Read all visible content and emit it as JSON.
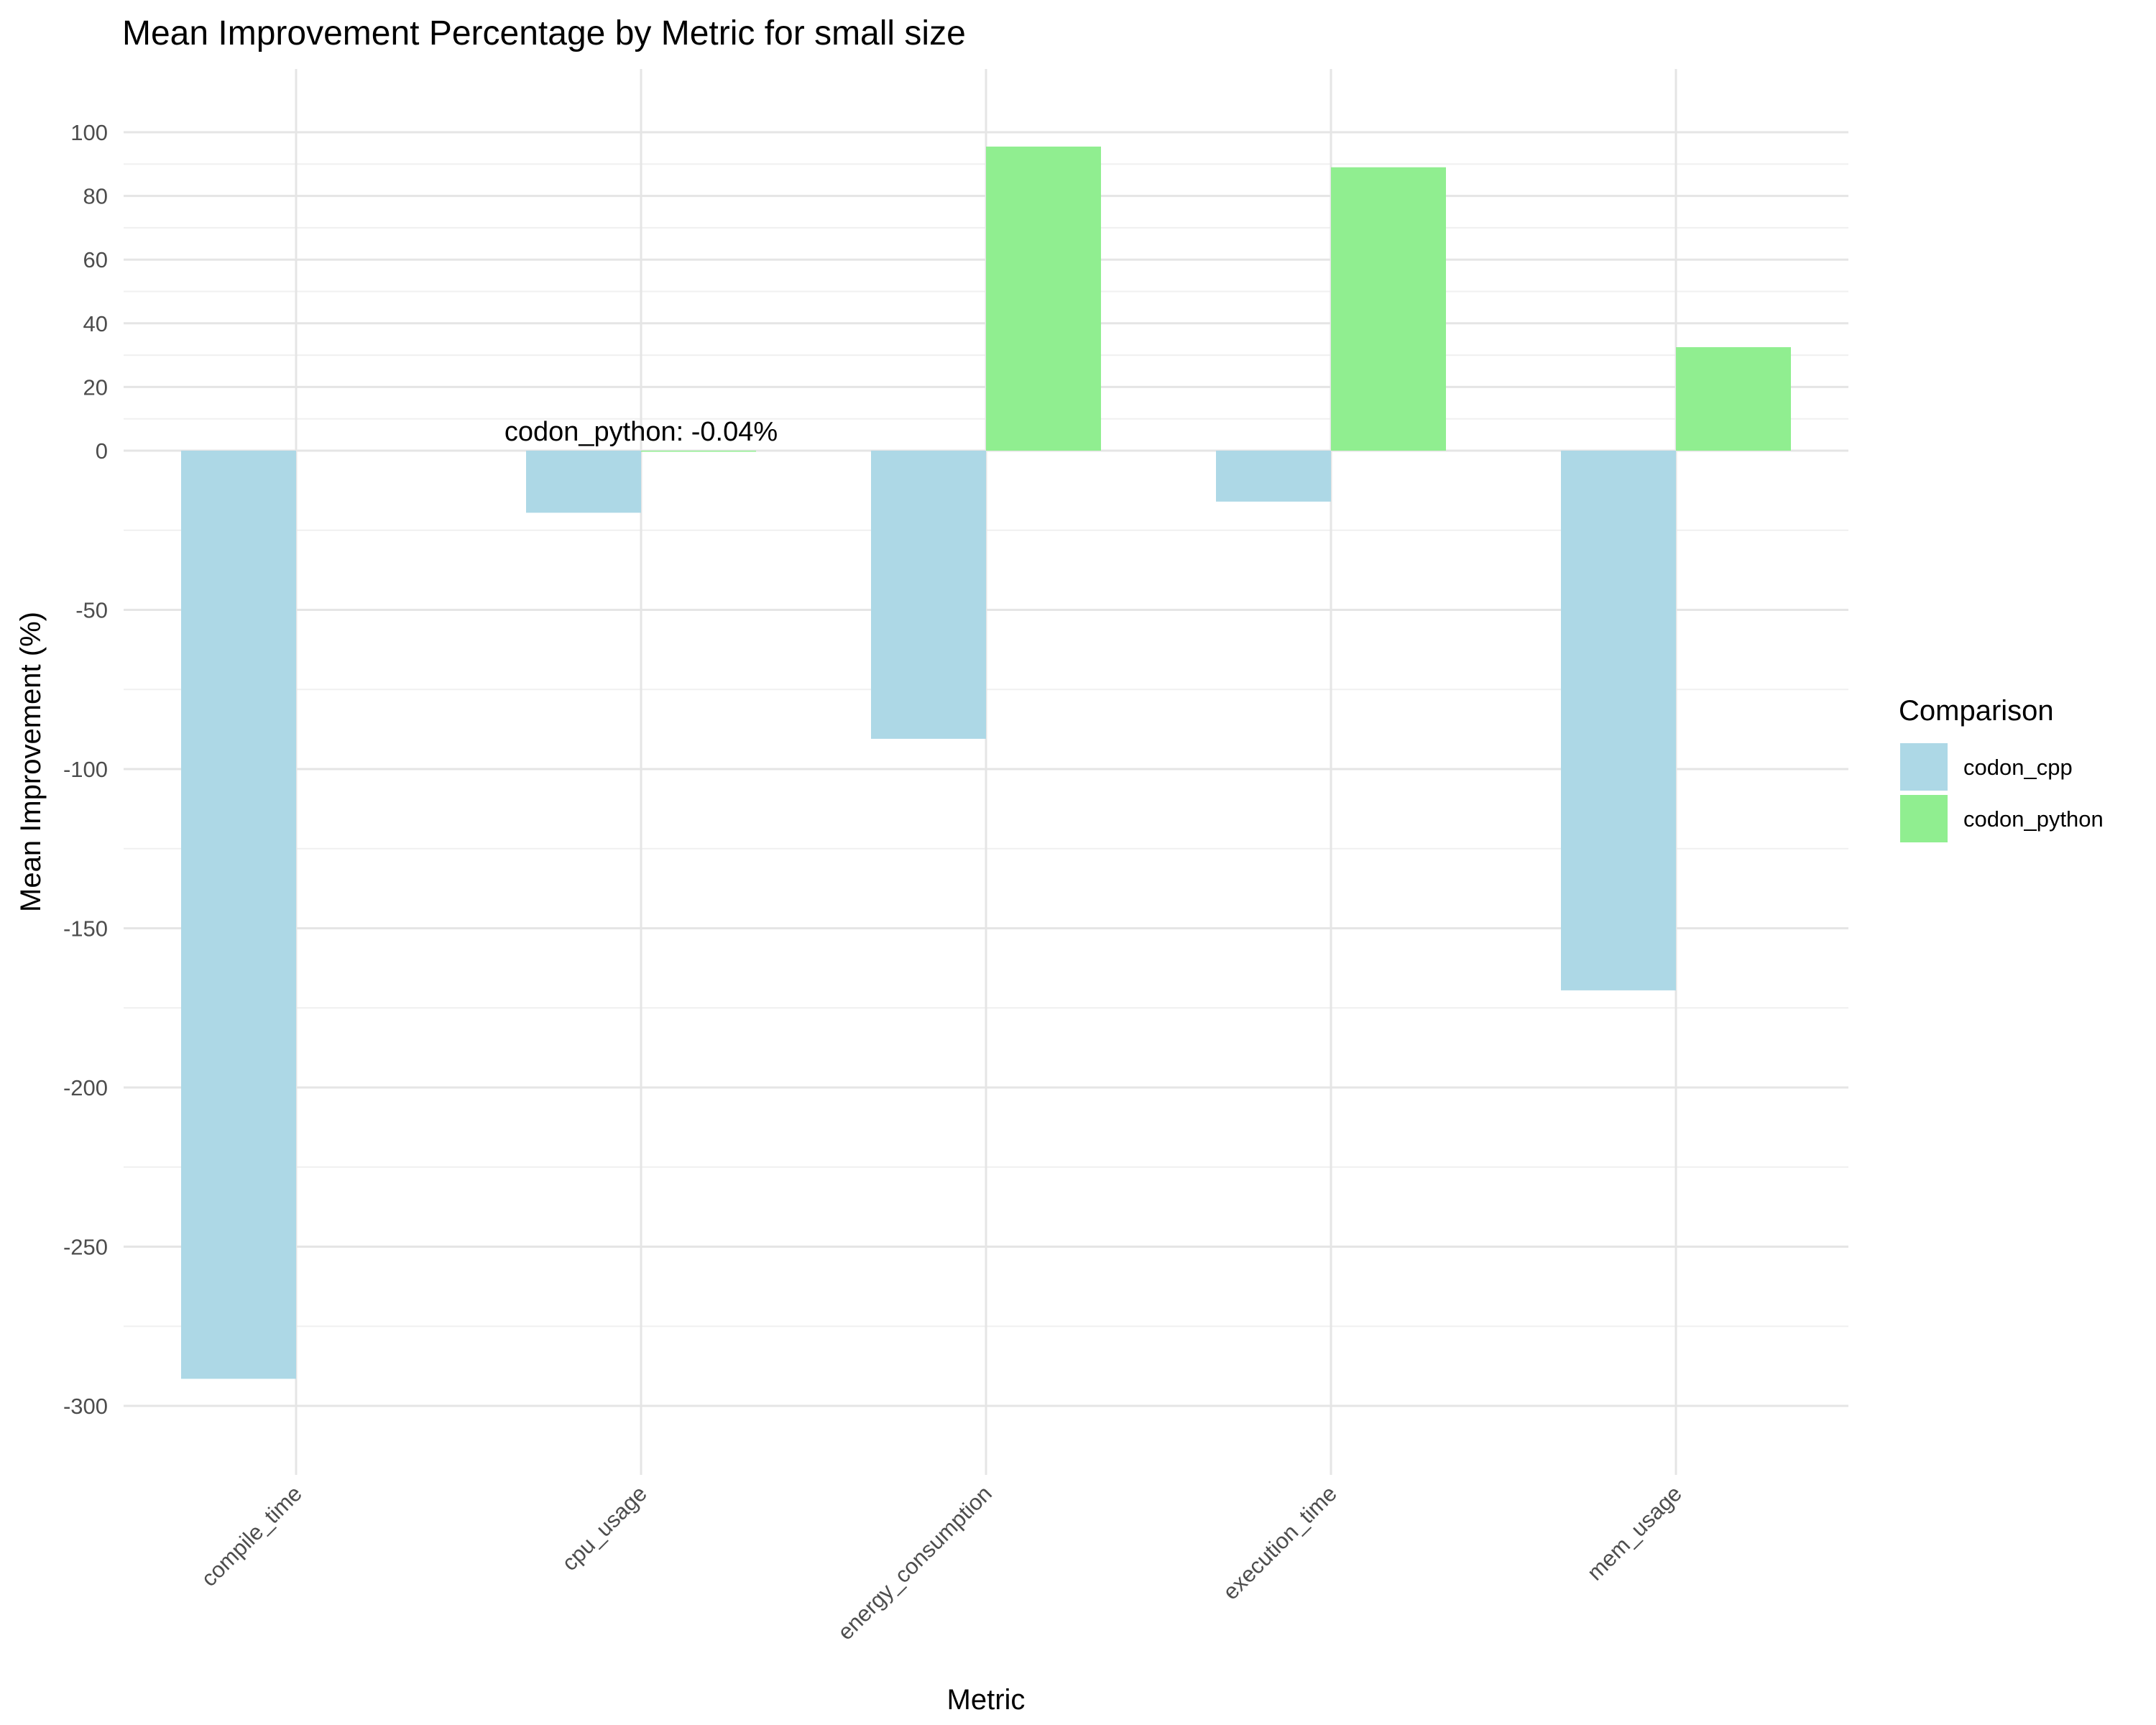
{
  "chart_data": {
    "type": "bar",
    "title": "Mean Improvement Percentage by Metric for small size",
    "xlabel": "Metric",
    "ylabel": "Mean Improvement (%)",
    "categories": [
      "compile_time",
      "cpu_usage",
      "energy_consumption",
      "execution_time",
      "mem_usage"
    ],
    "series": [
      {
        "name": "codon_cpp",
        "color": "#add8e6",
        "values": [
          -291.5,
          -19.5,
          -90.5,
          -16,
          -169.5
        ]
      },
      {
        "name": "codon_python",
        "color": "#90ee90",
        "values": [
          null,
          -0.04,
          95.5,
          89,
          32.5
        ]
      }
    ],
    "y_ticks": [
      {
        "value": 100,
        "label": "100"
      },
      {
        "value": 80,
        "label": "80"
      },
      {
        "value": 60,
        "label": "60"
      },
      {
        "value": 40,
        "label": "40"
      },
      {
        "value": 20,
        "label": "20"
      },
      {
        "value": 0,
        "label": "0"
      },
      {
        "value": -50,
        "label": "-50"
      },
      {
        "value": -100,
        "label": "-100"
      },
      {
        "value": -150,
        "label": "-150"
      },
      {
        "value": -200,
        "label": "-200"
      },
      {
        "value": -250,
        "label": "-250"
      },
      {
        "value": -300,
        "label": "-300"
      }
    ],
    "ylim": [
      -320,
      115
    ],
    "grid": true,
    "legend": {
      "title": "Comparison",
      "position": "right"
    },
    "annotation": {
      "text": "codon_python: -0.04%",
      "category": "cpu_usage"
    }
  }
}
